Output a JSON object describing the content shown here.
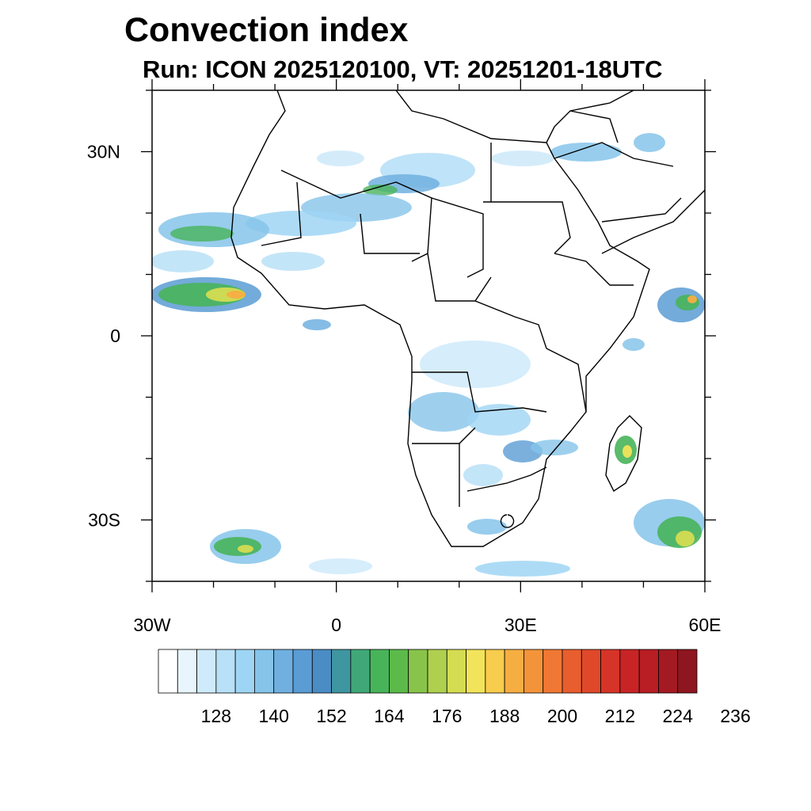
{
  "title": "Convection index",
  "subtitle": "Run: ICON 2025120100,  VT: 20251201-18UTC",
  "map": {
    "lon_range": [
      -30,
      60
    ],
    "lat_range": [
      -40,
      40
    ],
    "x_ticks": [
      {
        "value": -30,
        "label": "30W"
      },
      {
        "value": 0,
        "label": "0"
      },
      {
        "value": 30,
        "label": "30E"
      },
      {
        "value": 60,
        "label": "60E"
      }
    ],
    "y_ticks": [
      {
        "value": 30,
        "label": "30N"
      },
      {
        "value": 0,
        "label": "0"
      },
      {
        "value": -30,
        "label": "30S"
      }
    ]
  },
  "colorbar": {
    "colors": [
      "#ffffff",
      "#e8f5fc",
      "#cfeafa",
      "#b8e0f7",
      "#9fd5f4",
      "#86c4ea",
      "#70b0e0",
      "#5a9cd4",
      "#4a8cc4",
      "#3e96a0",
      "#40a878",
      "#48b45a",
      "#5cba4a",
      "#88c44a",
      "#aed04e",
      "#d4dc52",
      "#f2e45a",
      "#f8cc4c",
      "#f6ae42",
      "#f4943a",
      "#f07834",
      "#e85e2e",
      "#e0482a",
      "#d63428",
      "#c82426",
      "#b81e24",
      "#a41a22",
      "#8e1620"
    ],
    "labels": [
      "128",
      "140",
      "152",
      "164",
      "176",
      "188",
      "200",
      "212",
      "224",
      "236"
    ]
  }
}
